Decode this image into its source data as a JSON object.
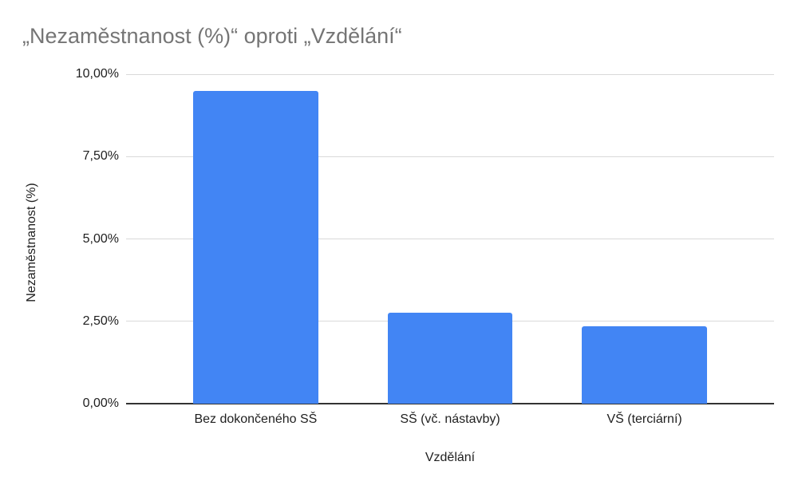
{
  "chart_data": {
    "type": "bar",
    "title": "„Nezaměstnanost (%)“ oproti „Vzdělání“",
    "xlabel": "Vzdělání",
    "ylabel": "Nezaměstnanost (%)",
    "categories": [
      "Bez dokončeného SŠ",
      "SŠ (vč. nástavby)",
      "VŠ (terciární)"
    ],
    "values": [
      9.5,
      2.75,
      2.35
    ],
    "ylim": [
      0,
      10
    ],
    "yticks": [
      {
        "value": 0,
        "label": "0,00%"
      },
      {
        "value": 2.5,
        "label": "2,50%"
      },
      {
        "value": 5,
        "label": "5,00%"
      },
      {
        "value": 7.5,
        "label": "7,50%"
      },
      {
        "value": 10,
        "label": "10,00%"
      }
    ],
    "grid": true,
    "legend_position": "none"
  },
  "colors": {
    "bar": "#4285f4",
    "title_text": "#757575",
    "axis_text": "#1f1f1f",
    "gridline": "#d9d9d9",
    "baseline": "#333333",
    "background": "#ffffff"
  }
}
